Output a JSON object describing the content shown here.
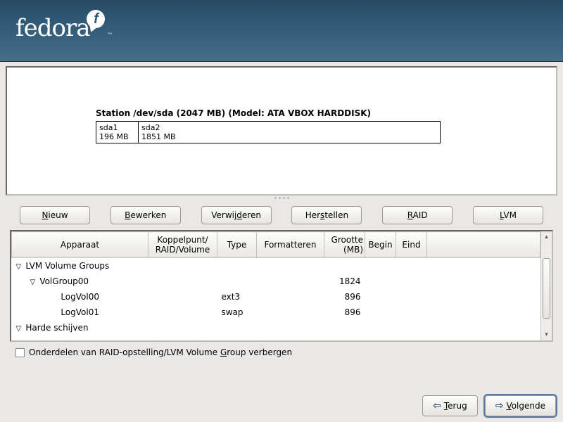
{
  "branding": {
    "name": "fedora",
    "f_glyph": "f"
  },
  "station_label": "Station /dev/sda (2047 MB) (Model: ATA VBOX HARDDISK)",
  "partitions": [
    {
      "name": "sda1",
      "size": "196 MB"
    },
    {
      "name": "sda2",
      "size": "1851 MB"
    }
  ],
  "buttons": {
    "new": "Nieuw",
    "new_u": "N",
    "edit": "Bewerken",
    "edit_u": "B",
    "delete": "Verwijderen",
    "delete_u": "d",
    "restore": "Herstellen",
    "restore_u": "s",
    "raid": "RAID",
    "raid_u": "R",
    "lvm": "LVM",
    "lvm_u": "L"
  },
  "columns": {
    "device": "Apparaat",
    "mount": "Koppelpunt/\nRAID/Volume",
    "type": "Type",
    "format": "Formatteren",
    "size": "Grootte\n(MB)",
    "begin": "Begin",
    "end": "Eind"
  },
  "rows": [
    {
      "device": "LVM Volume Groups",
      "indent": 0,
      "expander": "▽",
      "type": "",
      "size": ""
    },
    {
      "device": "VolGroup00",
      "indent": 1,
      "expander": "▽",
      "type": "",
      "size": "1824"
    },
    {
      "device": "LogVol00",
      "indent": 2,
      "expander": "",
      "type": "ext3",
      "size": "896"
    },
    {
      "device": "LogVol01",
      "indent": 2,
      "expander": "",
      "type": "swap",
      "size": "896"
    },
    {
      "device": "Harde schijven",
      "indent": 0,
      "expander": "▽",
      "type": "",
      "size": ""
    }
  ],
  "checkbox_label": "Onderdelen van RAID-opstelling/LVM Volume Group verbergen",
  "checkbox_underline_char": "G",
  "nav": {
    "back": "Terug",
    "back_u": "T",
    "next": "Volgende",
    "next_u": "V"
  },
  "colors": {
    "header_top": "#2a4a63",
    "header_bottom": "#456e87",
    "page_bg": "#e9e8e7",
    "button_border": "#9d9a94",
    "focus_ring": "#5a7aa3"
  }
}
